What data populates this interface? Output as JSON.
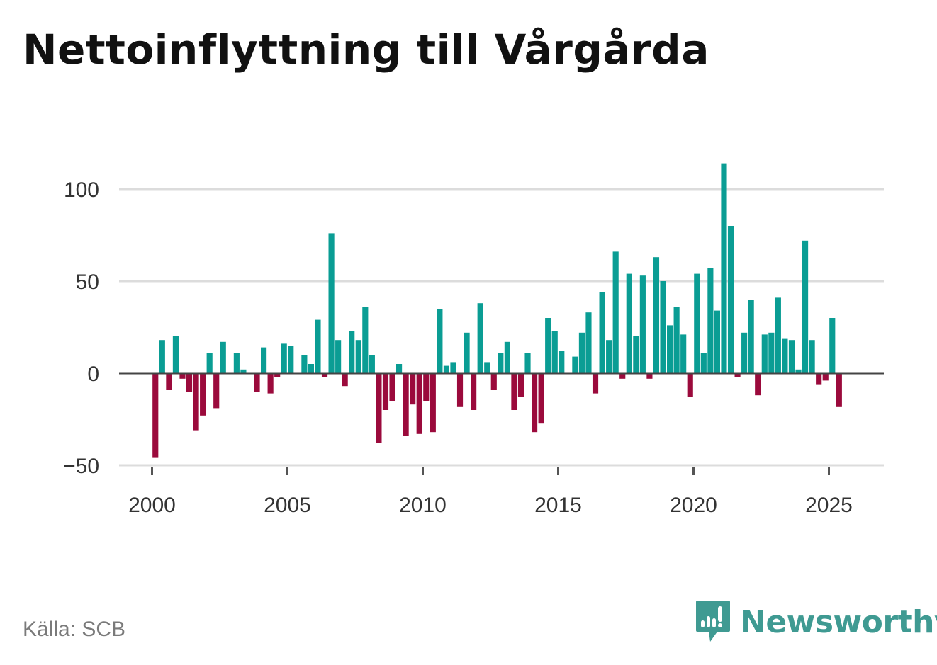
{
  "title": "Nettoinflyttning till Vårgårda",
  "source": "Källa: SCB",
  "brand": {
    "name": "Newsworthy",
    "logo_icon": "newsworthy-logo-icon"
  },
  "colors": {
    "positive": "#0a9d94",
    "negative": "#9b0a3c",
    "brand": "#3f9a92",
    "grid": "#dcdcdc",
    "zero_line": "#444444"
  },
  "chart_data": {
    "type": "bar",
    "title": "Nettoinflyttning till Vårgårda",
    "xlabel": "",
    "ylabel": "",
    "x_unit": "quarter",
    "ylim": [
      -50,
      115
    ],
    "yticks": [
      -50,
      0,
      50,
      100
    ],
    "ytick_labels": [
      "−50",
      "0",
      "50",
      "100"
    ],
    "xticks": [
      2000,
      2005,
      2010,
      2015,
      2020,
      2025
    ],
    "xtick_labels": [
      "2000",
      "2005",
      "2010",
      "2015",
      "2020",
      "2025"
    ],
    "grid": true,
    "start_year": 2000,
    "values": [
      -46,
      18,
      -9,
      20,
      -3,
      -10,
      -31,
      -23,
      11,
      -19,
      17,
      0,
      11,
      2,
      0,
      -10,
      14,
      -11,
      -2,
      16,
      15,
      0,
      10,
      5,
      29,
      -2,
      76,
      18,
      -7,
      23,
      18,
      36,
      10,
      -38,
      -20,
      -15,
      5,
      -34,
      -17,
      -33,
      -15,
      -32,
      35,
      4,
      6,
      -18,
      22,
      -20,
      38,
      6,
      -9,
      11,
      17,
      -20,
      -13,
      11,
      -32,
      -27,
      30,
      23,
      12,
      0,
      9,
      22,
      33,
      -11,
      44,
      18,
      66,
      -3,
      54,
      20,
      53,
      -3,
      63,
      50,
      26,
      36,
      21,
      -13,
      54,
      11,
      57,
      34,
      114,
      80,
      -2,
      22,
      40,
      -12,
      21,
      22,
      41,
      19,
      18,
      2,
      72,
      18,
      -6,
      -4,
      30,
      -18
    ]
  }
}
